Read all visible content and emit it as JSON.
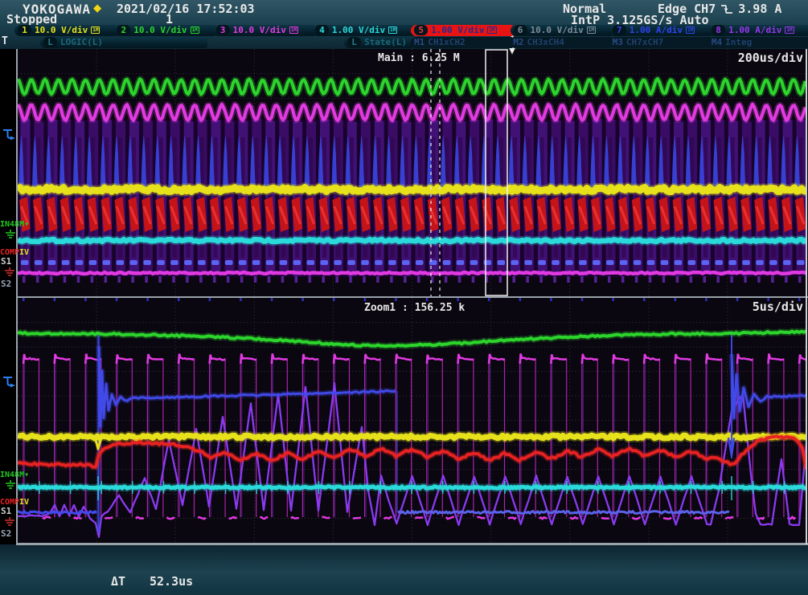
{
  "header": {
    "brand": "YOKOGAWA",
    "logo_diamond": "◆",
    "datetime": "2021/02/16 17:52:03",
    "acq_mode": "Normal",
    "run_state": "Stopped",
    "acq_count": "1",
    "sample_rate": "IntP 3.125GS/s Auto",
    "trigger": {
      "type_source": "Edge CH7",
      "slope": "falling",
      "level": "3.98 A"
    }
  },
  "channel_bar": {
    "trigger_row_label": "T",
    "impedance_icon": "1M",
    "channels": [
      {
        "id": "1",
        "scale": "10.0 V/div",
        "color": "#e6e11a",
        "selected": false
      },
      {
        "id": "2",
        "scale": "10.0 V/div",
        "color": "#2cd42c",
        "selected": false
      },
      {
        "id": "3",
        "scale": "10.0 V/div",
        "color": "#e23ae2",
        "selected": false
      },
      {
        "id": "4",
        "scale": "1.00 V/div",
        "color": "#2adada",
        "selected": false
      },
      {
        "id": "5",
        "scale": "1.00 V/div",
        "color": "#232a8c",
        "selected": true
      },
      {
        "id": "6",
        "scale": "10.0 V/div",
        "color": "#7d8d99",
        "selected": false
      },
      {
        "id": "7",
        "scale": "1.00 A/div",
        "color": "#2f43f0",
        "selected": false
      },
      {
        "id": "8",
        "scale": "1.00 A/div",
        "color": "#9a35ee",
        "selected": false
      }
    ],
    "logic_tabs": [
      {
        "badge": "L",
        "label": "LOGIC(L)"
      },
      {
        "badge": "L",
        "label": "State(L)"
      }
    ],
    "math_tabs": [
      {
        "id": "M1",
        "label": "CH1xCH2"
      },
      {
        "id": "M2",
        "label": "CH3xCH4"
      },
      {
        "id": "M3",
        "label": "CH7xCH7"
      },
      {
        "id": "M4",
        "label": "Integ"
      }
    ]
  },
  "main_window": {
    "record_label": "Main : 6.25 M",
    "timebase": "200us/div"
  },
  "zoom_window": {
    "record_label": "Zoom1 : 156.25 k",
    "timebase": "5us/div"
  },
  "side_labels": {
    "trigger_marker": "T",
    "bus": "IN48M",
    "comp": "COMP",
    "comp_overlay": "IV",
    "s1": "S1",
    "s2": "S2"
  },
  "footer": {
    "delta_t_label": "ΔT",
    "delta_t_value": "52.3us"
  },
  "colors": {
    "ch1_yellow": "#e6e11a",
    "ch2_green": "#2cd42c",
    "ch3_magenta": "#e23ae2",
    "ch4_cyan": "#2adada",
    "ch5_red": "#e62222",
    "ch7_blue": "#4149e8",
    "ch8_purple": "#8a3af0",
    "grid": "#34343e",
    "plot_bg": "#0a0710",
    "chrome_text": "#e8e8e8",
    "accent_yellow": "#f2d411",
    "selected_bg": "#e81414"
  }
}
